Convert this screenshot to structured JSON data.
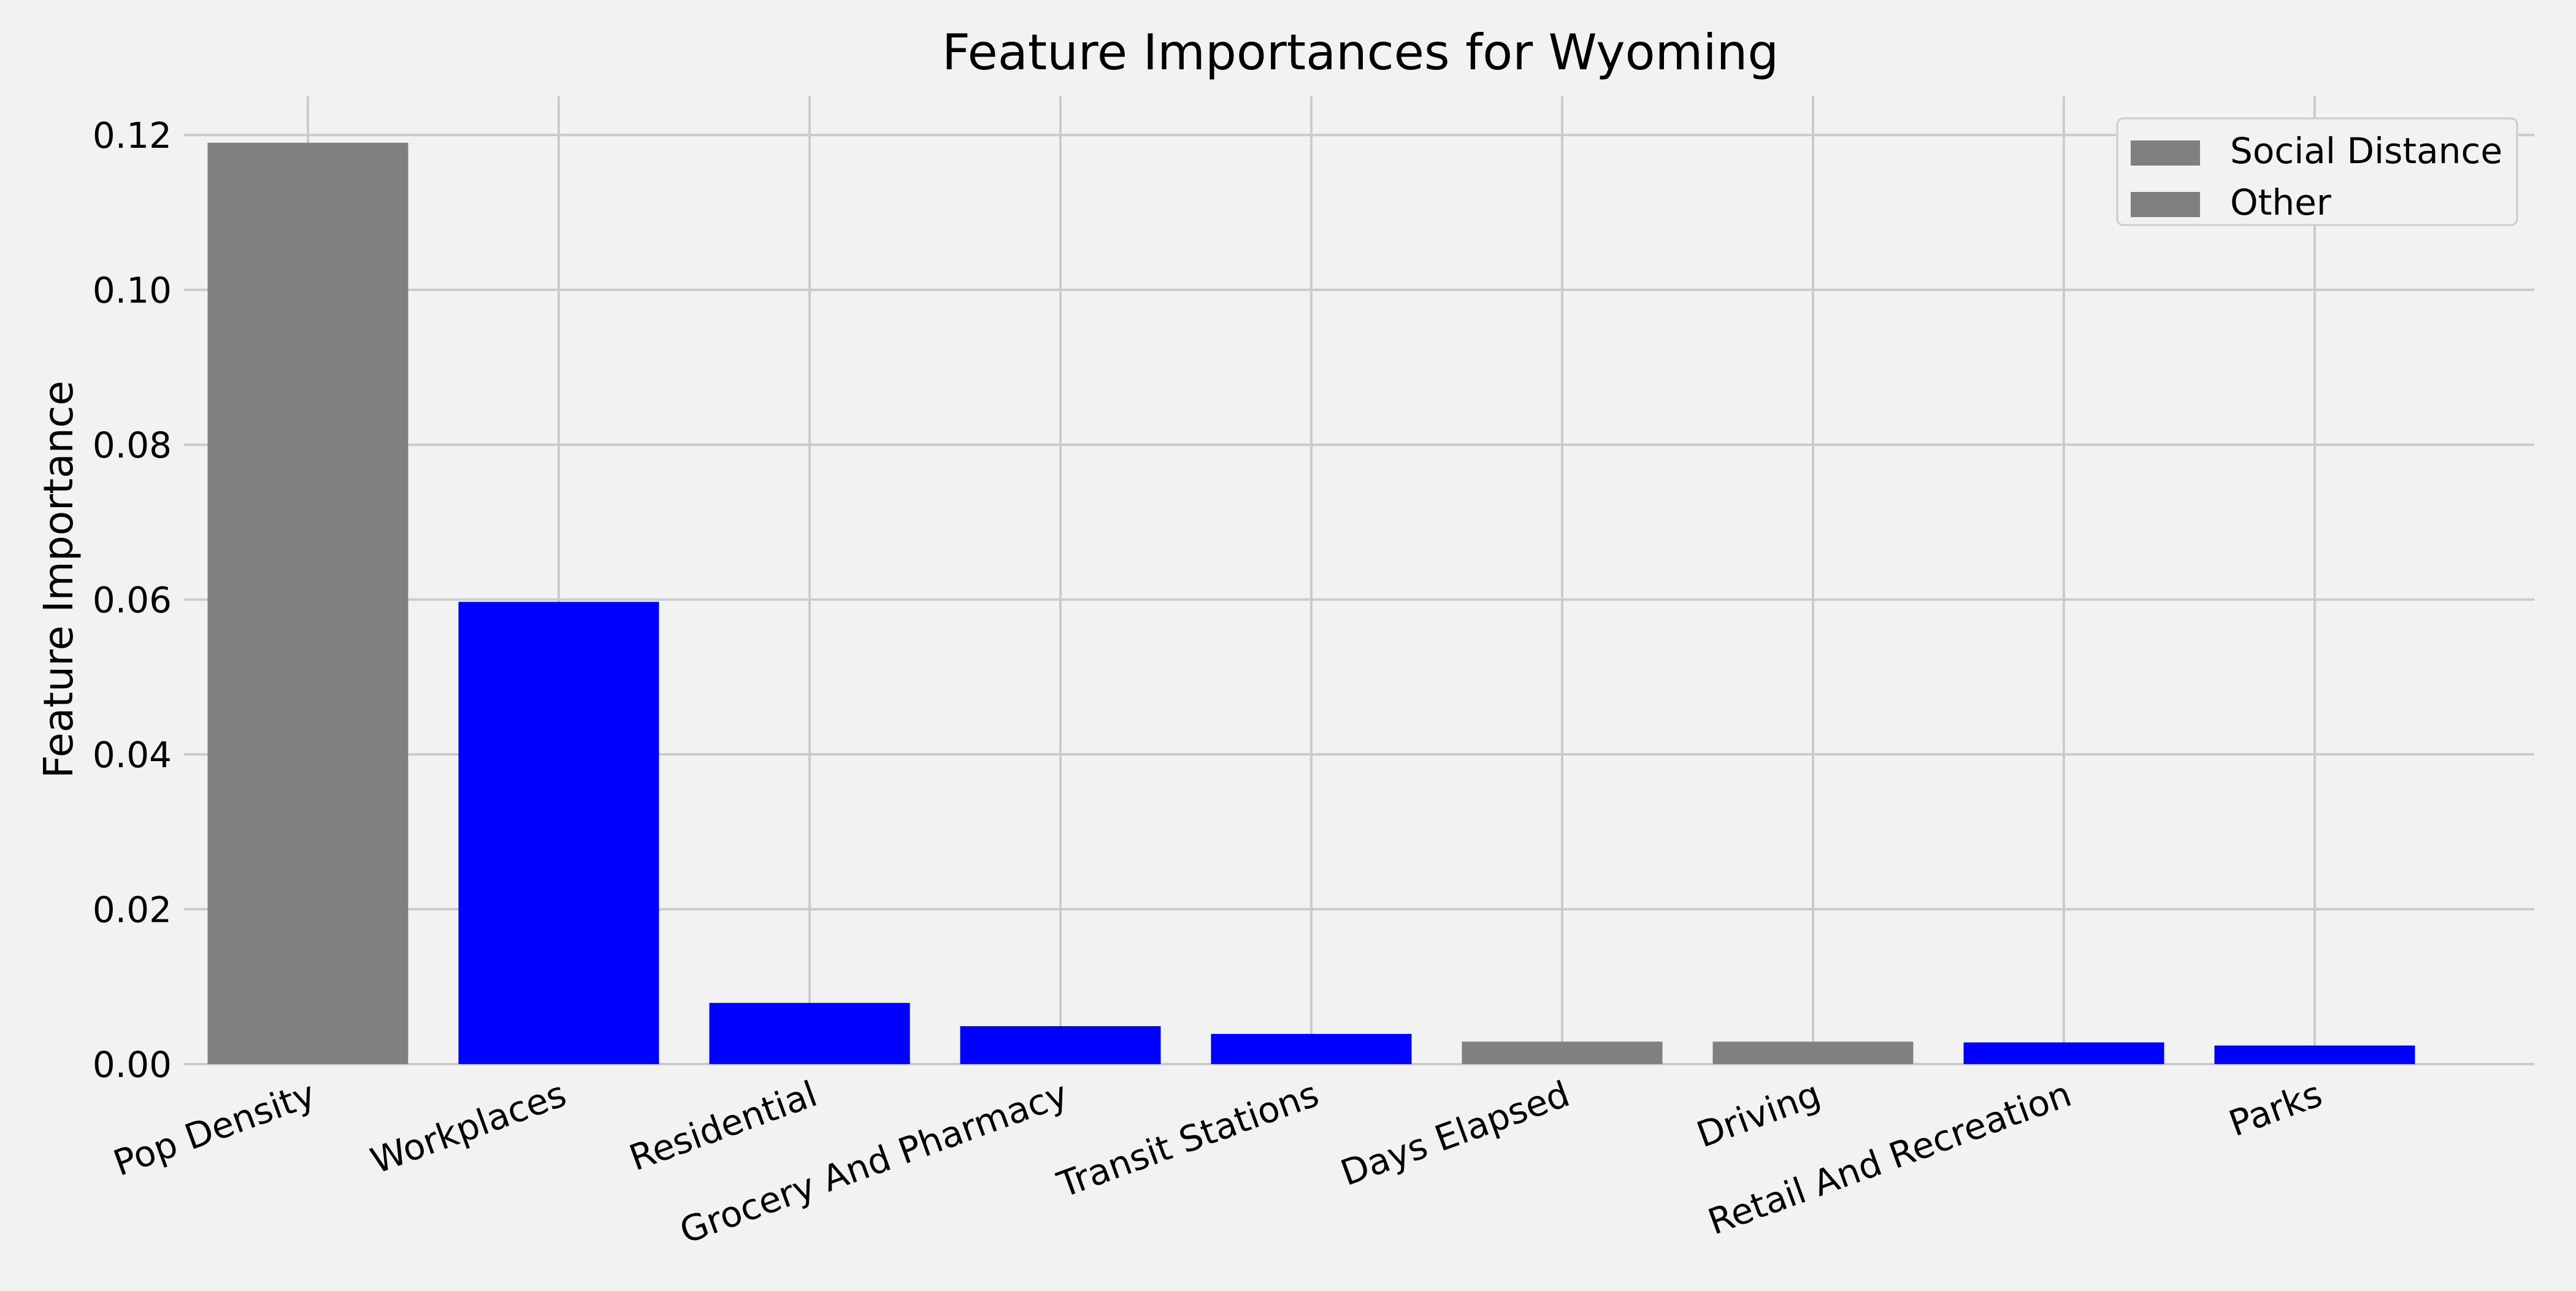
{
  "chart_data": {
    "type": "bar",
    "title": "Feature Importances for Wyoming",
    "xlabel": "",
    "ylabel": "Feature Importance",
    "ylim": [
      0,
      0.125
    ],
    "yticks": [
      0.0,
      0.02,
      0.04,
      0.06,
      0.08,
      0.1,
      0.12
    ],
    "ytick_labels": [
      "0.00",
      "0.02",
      "0.04",
      "0.06",
      "0.08",
      "0.10",
      "0.12"
    ],
    "grid": true,
    "legend_position": "top-right",
    "legend": [
      {
        "label": "Social Distance",
        "color": "#808080"
      },
      {
        "label": "Other",
        "color": "#808080"
      }
    ],
    "categories": [
      "Pop Density",
      "Workplaces",
      "Residential",
      "Grocery And Pharmacy",
      "Transit Stations",
      "Days Elapsed",
      "Driving",
      "Retail And Recreation",
      "Parks"
    ],
    "values": [
      0.119,
      0.0597,
      0.0079,
      0.0049,
      0.0039,
      0.0029,
      0.0029,
      0.0028,
      0.0024
    ],
    "bar_colors": [
      "#808080",
      "#0000ff",
      "#0000ff",
      "#0000ff",
      "#0000ff",
      "#808080",
      "#808080",
      "#0000ff",
      "#0000ff"
    ]
  },
  "colors": {
    "background": "#f2f2f2",
    "grid": "#cbcbcb"
  }
}
